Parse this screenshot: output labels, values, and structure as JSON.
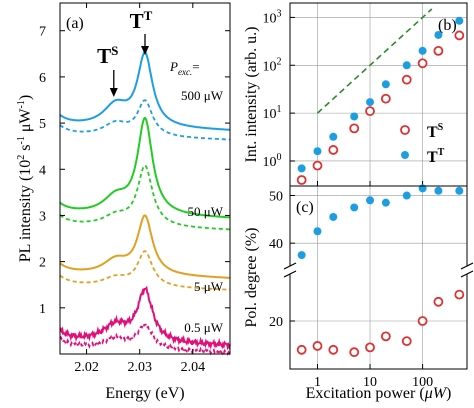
{
  "chart_data": [
    {
      "panel": "(a)",
      "type": "line",
      "xlabel": "Energy (eV)",
      "ylabel_main": "PL intensity (10",
      "ylabel_sup1": "2",
      "ylabel_mid": " s",
      "ylabel_sup2": "-1",
      "ylabel_mid2": " μW",
      "ylabel_sup3": "-1",
      "ylabel_end": ")",
      "xlim": [
        2.015,
        2.047
      ],
      "ylim": [
        0,
        7.6
      ],
      "xticks": [
        "2.02",
        "2.03",
        "2.04"
      ],
      "xtick_values": [
        2.02,
        2.03,
        2.04
      ],
      "yticks": [
        "1",
        "2",
        "3",
        "4",
        "5",
        "6",
        "7"
      ],
      "ytick_values": [
        1,
        2,
        3,
        4,
        5,
        6,
        7
      ],
      "peak_labels": {
        "singlet": "T",
        "singlet_sup": "S",
        "triplet": "T",
        "triplet_sup": "T"
      },
      "peak_energy": {
        "singlet": 2.0255,
        "triplet": 2.031
      },
      "power_header": "P",
      "power_header_sub": "exc.",
      "power_header_eq": "=",
      "series": [
        {
          "label": "500 μW",
          "color": "#1d9ee3",
          "baseline": 4.95,
          "dashed_baseline": 4.75,
          "peak": 1.55,
          "dashed_peak": 0.75,
          "shoulder": 0.45
        },
        {
          "label": "50 μW",
          "color": "#22cc22",
          "baseline": 3.05,
          "dashed_baseline": 2.8,
          "peak": 2.05,
          "dashed_peak": 1.3,
          "shoulder": 0.35
        },
        {
          "label": "5 μW",
          "color": "#e0a020",
          "baseline": 1.75,
          "dashed_baseline": 1.5,
          "peak": 1.25,
          "dashed_peak": 0.75,
          "shoulder": 0.3
        },
        {
          "label": "0.5 μW",
          "color": "#e0107a",
          "baseline": 0.3,
          "dashed_baseline": 0.15,
          "peak": 1.1,
          "dashed_peak": 0.5,
          "shoulder": 0.35
        }
      ]
    },
    {
      "panel": "(b)",
      "type": "scatter",
      "scale": "log-log",
      "ylabel": "Int. intensity (arb. u.)",
      "xlim": [
        0.3,
        700
      ],
      "ylim": [
        0.3,
        2000
      ],
      "yticks": [
        "10",
        "10",
        "10",
        "10"
      ],
      "ytick_exp": [
        "0",
        "1",
        "2",
        "3"
      ],
      "ytick_values": [
        1,
        10,
        100,
        1000
      ],
      "grid": true,
      "legend_position": "bottom-right",
      "power": [
        0.5,
        1,
        2,
        5,
        10,
        20,
        50,
        100,
        200,
        500
      ],
      "series": [
        {
          "name": "T",
          "name_sup": "S",
          "marker": "open-circle",
          "color": "#e03030",
          "values": [
            0.4,
            0.8,
            1.7,
            4.8,
            11,
            20,
            50,
            110,
            200,
            420
          ]
        },
        {
          "name": "T",
          "name_sup": "T",
          "marker": "filled-circle",
          "color": "#1d9ee3",
          "values": [
            0.7,
            1.6,
            3.2,
            8.5,
            17,
            40,
            100,
            200,
            430,
            850
          ]
        }
      ],
      "guide_line": {
        "style": "dashed",
        "color": "#2a8a2a",
        "x": [
          1,
          150
        ],
        "y": [
          10,
          1500
        ]
      }
    },
    {
      "panel": "(c)",
      "type": "scatter",
      "scale": "log-x, broken-y",
      "xlabel": "Excitation power (",
      "xlabel_unit": "μW",
      "xlabel_end": ")",
      "ylabel": "Pol. degree (%)",
      "xlim": [
        0.3,
        700
      ],
      "xticks": [
        "1",
        "10",
        "100"
      ],
      "xtick_values": [
        1,
        10,
        100
      ],
      "upper_range": [
        35,
        52
      ],
      "lower_range": [
        10,
        30
      ],
      "yticks_upper": [
        "40",
        "50"
      ],
      "ytick_upper_values": [
        40,
        50
      ],
      "yticks_lower": [
        "20"
      ],
      "ytick_lower_values": [
        20
      ],
      "grid": true,
      "power": [
        0.5,
        1,
        2,
        5,
        10,
        20,
        50,
        100,
        200,
        500
      ],
      "series": [
        {
          "name": "T",
          "name_sup": "T",
          "marker": "filled-circle",
          "color": "#1d9ee3",
          "values": [
            37.5,
            42.5,
            45.5,
            47.5,
            49.0,
            48.5,
            50.0,
            51.5,
            51.0,
            51.0
          ]
        },
        {
          "name": "T",
          "name_sup": "S",
          "marker": "open-circle",
          "color": "#e03030",
          "values": [
            14.0,
            14.8,
            14.0,
            13.5,
            14.5,
            16.8,
            15.8,
            20.0,
            24.0,
            25.5
          ]
        }
      ]
    }
  ]
}
